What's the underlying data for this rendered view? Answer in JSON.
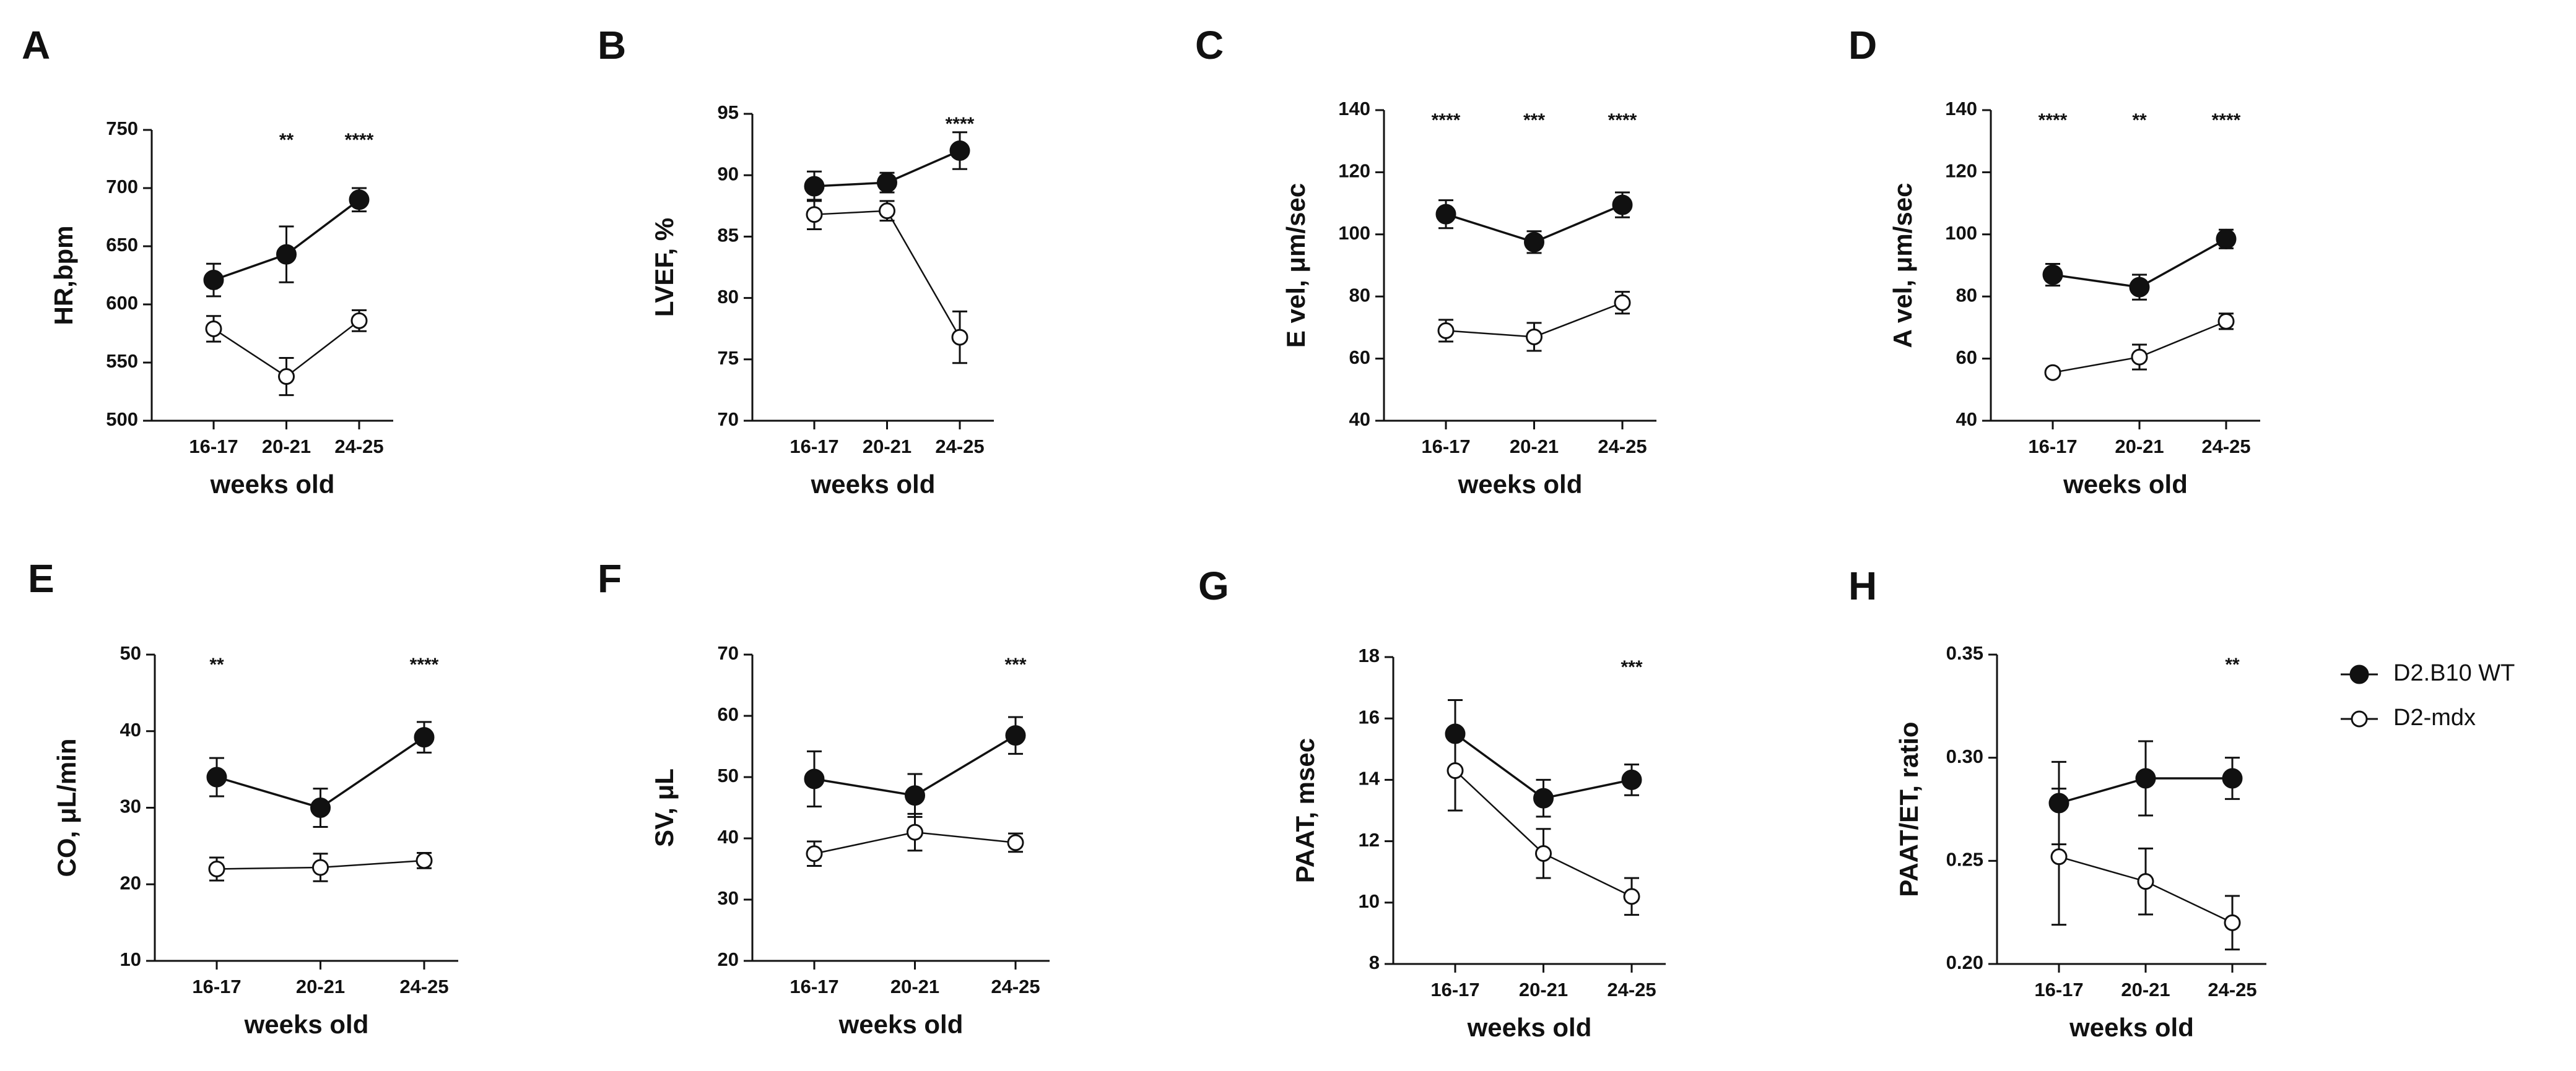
{
  "chart_data": [
    {
      "panel": "A",
      "type": "line",
      "ylabel": "HR,bpm",
      "xlabel": "weeks old",
      "categories": [
        "16-17",
        "20-21",
        "24-25"
      ],
      "ylim": [
        500,
        750
      ],
      "yticks": [
        500,
        550,
        600,
        650,
        700,
        750
      ],
      "series": [
        {
          "name": "D2.B10 WT",
          "values": [
            621,
            643,
            690
          ],
          "errors": [
            14,
            24,
            10
          ]
        },
        {
          "name": "D2-mdx",
          "values": [
            579,
            538,
            586
          ],
          "errors": [
            11,
            16,
            9
          ]
        }
      ],
      "significance": [
        "",
        "**",
        "****"
      ]
    },
    {
      "panel": "B",
      "type": "line",
      "ylabel": "LVEF, %",
      "xlabel": "weeks old",
      "categories": [
        "16-17",
        "20-21",
        "24-25"
      ],
      "ylim": [
        70,
        95
      ],
      "yticks": [
        70,
        75,
        80,
        85,
        90,
        95
      ],
      "series": [
        {
          "name": "D2.B10 WT",
          "values": [
            89.1,
            89.4,
            92.0
          ],
          "errors": [
            1.2,
            0.8,
            1.5
          ]
        },
        {
          "name": "D2-mdx",
          "values": [
            86.8,
            87.1,
            76.8
          ],
          "errors": [
            1.2,
            0.8,
            2.1
          ]
        }
      ],
      "significance": [
        "",
        "",
        "****"
      ]
    },
    {
      "panel": "C",
      "type": "line",
      "ylabel": "E vel, μm/sec",
      "xlabel": "weeks old",
      "categories": [
        "16-17",
        "20-21",
        "24-25"
      ],
      "ylim": [
        40,
        140
      ],
      "yticks": [
        40,
        60,
        80,
        100,
        120,
        140
      ],
      "series": [
        {
          "name": "D2.B10 WT",
          "values": [
            106.5,
            97.5,
            109.5
          ],
          "errors": [
            4.5,
            3.5,
            4.0
          ]
        },
        {
          "name": "D2-mdx",
          "values": [
            69,
            67,
            78
          ],
          "errors": [
            3.5,
            4.5,
            3.5
          ]
        }
      ],
      "significance": [
        "****",
        "***",
        "****"
      ]
    },
    {
      "panel": "D",
      "type": "line",
      "ylabel": "A vel, μm/sec",
      "xlabel": "weeks old",
      "categories": [
        "16-17",
        "20-21",
        "24-25"
      ],
      "ylim": [
        40,
        140
      ],
      "yticks": [
        40,
        60,
        80,
        100,
        120,
        140
      ],
      "series": [
        {
          "name": "D2.B10 WT",
          "values": [
            87,
            83,
            98.5
          ],
          "errors": [
            3.5,
            4.0,
            3.0
          ]
        },
        {
          "name": "D2-mdx",
          "values": [
            55.5,
            60.5,
            72
          ],
          "errors": [
            1.0,
            4.0,
            2.5
          ]
        }
      ],
      "significance": [
        "****",
        "**",
        "****"
      ]
    },
    {
      "panel": "E",
      "type": "line",
      "ylabel": "CO, μL/min",
      "xlabel": "weeks old",
      "categories": [
        "16-17",
        "20-21",
        "24-25"
      ],
      "ylim": [
        10,
        50
      ],
      "yticks": [
        10,
        20,
        30,
        40,
        50
      ],
      "series": [
        {
          "name": "D2.B10 WT",
          "values": [
            34,
            30,
            39.2
          ],
          "errors": [
            2.5,
            2.5,
            2.0
          ]
        },
        {
          "name": "D2-mdx",
          "values": [
            22,
            22.2,
            23.1
          ],
          "errors": [
            1.5,
            1.8,
            1.0
          ]
        }
      ],
      "significance": [
        "**",
        "",
        "****"
      ]
    },
    {
      "panel": "F",
      "type": "line",
      "ylabel": "SV, μL",
      "xlabel": "weeks old",
      "categories": [
        "16-17",
        "20-21",
        "24-25"
      ],
      "ylim": [
        20,
        70
      ],
      "yticks": [
        20,
        30,
        40,
        50,
        60,
        70
      ],
      "series": [
        {
          "name": "D2.B10 WT",
          "values": [
            49.7,
            47,
            56.8
          ],
          "errors": [
            4.5,
            3.5,
            3.0
          ]
        },
        {
          "name": "D2-mdx",
          "values": [
            37.5,
            41,
            39.3
          ],
          "errors": [
            2.0,
            3.0,
            1.5
          ]
        }
      ],
      "significance": [
        "",
        "",
        "***"
      ]
    },
    {
      "panel": "G",
      "type": "line",
      "ylabel": "PAAT, msec",
      "xlabel": "weeks old",
      "categories": [
        "16-17",
        "20-21",
        "24-25"
      ],
      "ylim": [
        8,
        18
      ],
      "yticks": [
        8,
        10,
        12,
        14,
        16,
        18
      ],
      "series": [
        {
          "name": "D2.B10 WT",
          "values": [
            15.5,
            13.4,
            14.0
          ],
          "errors": [
            1.1,
            0.6,
            0.5
          ]
        },
        {
          "name": "D2-mdx",
          "values": [
            14.3,
            11.6,
            10.2
          ],
          "errors": [
            1.3,
            0.8,
            0.6
          ]
        }
      ],
      "significance": [
        "",
        "",
        "***"
      ]
    },
    {
      "panel": "H",
      "type": "line",
      "ylabel": "PAAT/ET, ratio",
      "xlabel": "weeks old",
      "categories": [
        "16-17",
        "20-21",
        "24-25"
      ],
      "ylim": [
        0.2,
        0.35
      ],
      "yticks": [
        0.2,
        0.25,
        0.3,
        0.35
      ],
      "tick_decimals": 2,
      "series": [
        {
          "name": "D2.B10 WT",
          "values": [
            0.278,
            0.29,
            0.29
          ],
          "errors": [
            0.02,
            0.018,
            0.01
          ]
        },
        {
          "name": "D2-mdx",
          "values": [
            0.252,
            0.24,
            0.22
          ],
          "errors": [
            0.033,
            0.016,
            0.013
          ]
        }
      ],
      "significance": [
        "",
        "",
        "**"
      ]
    }
  ],
  "legend": {
    "items": [
      {
        "label": "D2.B10 WT",
        "marker": "filled-circle"
      },
      {
        "label": "D2-mdx",
        "marker": "open-circle"
      }
    ]
  },
  "colors": {
    "line": "#111111",
    "filled_marker": "#111111",
    "open_marker": "#ffffff"
  }
}
